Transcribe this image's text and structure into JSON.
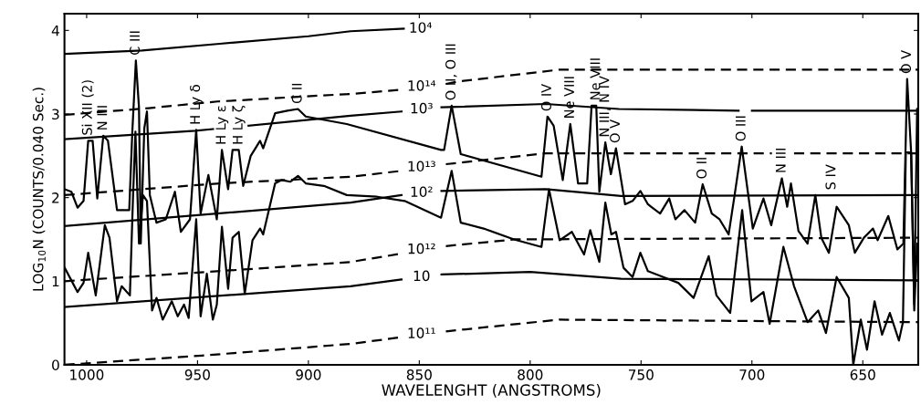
{
  "chart_data": {
    "type": "line",
    "xlabel": "WAVELENGHT (ANGSTROMS)",
    "ylabel": "LOG$_{10}$N (COUNTS/0.040 Sec.)",
    "xlim": [
      1010,
      625
    ],
    "xticks": [
      1000,
      950,
      900,
      850,
      800,
      750,
      700,
      650
    ],
    "ylim": [
      0,
      4.2
    ],
    "yticks": [
      0,
      1,
      2,
      3,
      4
    ],
    "grid": false,
    "marker": "none",
    "series": [
      {
        "color": "#000000",
        "line_style": "solid",
        "x": [
          1009.9,
          1006.9,
          1004.1,
          1001.4,
          999.3,
          997.3,
          995.2,
          992.5,
          990.4,
          986.3,
          980.8,
          979.4,
          977.8,
          976.4,
          975.6,
          974.0,
          972.8,
          971.5,
          968.5,
          964.3,
          960.2,
          957.5,
          953.4,
          950.6,
          948.6,
          945.1,
          941.3,
          939.0,
          936.2,
          934.2,
          931.4,
          929.4,
          926.0,
          921.8,
          920.4,
          915.0,
          909.5,
          904.7,
          901.2,
          882.7,
          840.2,
          838.8,
          835.4,
          831.3,
          794.9,
          792.2,
          789.4,
          785.3,
          781.9,
          778.4,
          774.3,
          772.3,
          770.2,
          768.8,
          766.1,
          763.6,
          761.3,
          757.2,
          753.8,
          750.3,
          746.9,
          745.5,
          741.4,
          737.3,
          734.5,
          730.4,
          725.6,
          722.2,
          718.1,
          714.6,
          710.5,
          707.8,
          704.6,
          699.6,
          694.8,
          691.3,
          686.5,
          684.1,
          682.4,
          679.0,
          674.9,
          671.4,
          668.7,
          665.3,
          661.8,
          656.3,
          653.6,
          649.5,
          645.4,
          643.3,
          638.5,
          634.4,
          631.7,
          630.0,
          628.2,
          626.8,
          625.5
        ],
        "values": [
          2.1,
          2.07,
          1.88,
          1.96,
          2.68,
          2.68,
          1.99,
          2.74,
          2.68,
          1.85,
          1.85,
          2.79,
          3.64,
          3.08,
          1.45,
          2.83,
          3.03,
          2.03,
          1.7,
          1.74,
          2.07,
          1.59,
          1.74,
          2.81,
          1.81,
          2.27,
          1.74,
          2.57,
          2.1,
          2.57,
          2.57,
          2.14,
          2.5,
          2.68,
          2.59,
          3.01,
          3.04,
          3.06,
          2.97,
          2.88,
          2.57,
          2.57,
          3.1,
          2.52,
          2.25,
          2.97,
          2.86,
          2.21,
          2.88,
          2.17,
          2.17,
          3.1,
          3.1,
          2.07,
          2.66,
          2.28,
          2.59,
          1.92,
          1.96,
          2.08,
          1.92,
          1.89,
          1.81,
          1.99,
          1.74,
          1.85,
          1.7,
          2.16,
          1.81,
          1.74,
          1.56,
          2.03,
          2.61,
          1.63,
          1.99,
          1.67,
          2.23,
          1.89,
          2.17,
          1.6,
          1.45,
          2.03,
          1.52,
          1.34,
          1.89,
          1.67,
          1.34,
          1.52,
          1.63,
          1.49,
          1.78,
          1.38,
          1.45,
          3.42,
          2.54,
          0.72,
          3.06
        ]
      },
      {
        "color": "#000000",
        "line_style": "solid",
        "x": [
          1009.9,
          1006.9,
          1004.1,
          1001.4,
          999.3,
          995.9,
          991.8,
          989.7,
          986.3,
          984.2,
          980.5,
          979.1,
          978.0,
          976.4,
          974.6,
          972.8,
          970.5,
          968.5,
          965.7,
          961.6,
          958.9,
          956.1,
          954.0,
          950.6,
          948.6,
          945.8,
          943.1,
          941.3,
          939.0,
          936.2,
          934.2,
          931.4,
          928.7,
          925.2,
          921.8,
          920.4,
          915.0,
          912.2,
          908.1,
          904.7,
          901.2,
          893.0,
          882.7,
          869.0,
          856.6,
          840.2,
          835.4,
          831.3,
          821.0,
          807.3,
          794.9,
          791.5,
          786.7,
          781.2,
          775.7,
          772.9,
          768.8,
          766.1,
          763.4,
          761.3,
          757.9,
          753.8,
          750.3,
          746.9,
          740.0,
          733.2,
          726.3,
          719.5,
          716.0,
          709.8,
          704.4,
          700.2,
          694.8,
          692.0,
          685.8,
          681.0,
          674.9,
          670.1,
          666.6,
          661.8,
          656.3,
          654.3,
          650.9,
          648.1,
          644.7,
          641.3,
          637.8,
          633.7,
          631.9,
          630.6,
          628.2,
          626.8,
          625.5
        ],
        "values": [
          1.16,
          1.01,
          0.87,
          0.98,
          1.34,
          0.83,
          1.67,
          1.52,
          0.76,
          0.94,
          0.83,
          2.0,
          2.79,
          1.45,
          2.03,
          1.96,
          0.65,
          0.8,
          0.54,
          0.76,
          0.58,
          0.72,
          0.56,
          1.74,
          0.58,
          1.09,
          0.54,
          0.72,
          1.65,
          0.91,
          1.52,
          1.59,
          0.85,
          1.49,
          1.63,
          1.56,
          2.17,
          2.21,
          2.19,
          2.26,
          2.17,
          2.14,
          2.03,
          2.01,
          1.96,
          1.76,
          2.32,
          1.7,
          1.63,
          1.5,
          1.41,
          2.1,
          1.49,
          1.59,
          1.32,
          1.61,
          1.23,
          1.94,
          1.56,
          1.59,
          1.16,
          1.05,
          1.34,
          1.12,
          1.05,
          0.98,
          0.8,
          1.3,
          0.83,
          0.62,
          1.85,
          0.76,
          0.87,
          0.49,
          1.41,
          0.94,
          0.51,
          0.65,
          0.38,
          1.05,
          0.8,
          0.0,
          0.54,
          0.18,
          0.76,
          0.36,
          0.62,
          0.29,
          0.51,
          2.54,
          2.54,
          0.65,
          1.45
        ]
      },
      {
        "name": "10⁴",
        "color": "#000000",
        "line_style": "solid",
        "x": [
          1010,
          975,
          940,
          900,
          881,
          857
        ],
        "values": [
          3.72,
          3.76,
          3.84,
          3.93,
          3.99,
          4.02
        ]
      },
      {
        "name": "10¹⁴",
        "color": "#000000",
        "line_style": "dashed",
        "x": [
          1010,
          972,
          941,
          927,
          902,
          881,
          858,
          849,
          838,
          832,
          787,
          625
        ],
        "values": [
          2.99,
          3.07,
          3.15,
          3.17,
          3.21,
          3.24,
          3.29,
          null,
          3.36,
          3.39,
          3.53,
          3.53
        ]
      },
      {
        "name": "10³",
        "color": "#000000",
        "line_style": "solid",
        "x": [
          1010,
          951,
          943,
          935,
          927,
          881,
          858,
          849,
          840,
          793,
          760,
          706,
          703,
          700,
          625
        ],
        "values": [
          2.7,
          2.8,
          2.82,
          null,
          2.86,
          2.98,
          3.03,
          null,
          3.08,
          3.12,
          3.06,
          3.04,
          null,
          3.04,
          3.04
        ]
      },
      {
        "name": "10¹³",
        "color": "#000000",
        "line_style": "dashed",
        "x": [
          1010,
          940,
          881,
          858,
          849,
          838,
          793,
          691,
          686,
          681,
          625
        ],
        "values": [
          2.03,
          2.17,
          2.25,
          2.32,
          null,
          2.4,
          2.53,
          2.53,
          null,
          2.53,
          2.53
        ]
      },
      {
        "name": "10²",
        "color": "#000000",
        "line_style": "solid",
        "x": [
          1010,
          881,
          858,
          849,
          840,
          793,
          759,
          625
        ],
        "values": [
          1.66,
          1.94,
          2.03,
          null,
          2.08,
          2.1,
          2.02,
          2.03
        ]
      },
      {
        "name": "10¹²",
        "color": "#000000",
        "line_style": "dashed",
        "x": [
          1010,
          929,
          881,
          858,
          849,
          838,
          807,
          625
        ],
        "values": [
          1.0,
          1.14,
          1.23,
          1.33,
          null,
          1.42,
          1.5,
          1.52
        ]
      },
      {
        "name": "10",
        "color": "#000000",
        "line_style": "solid",
        "x": [
          1010,
          881,
          858,
          849,
          840,
          800,
          759,
          625
        ],
        "values": [
          0.69,
          0.94,
          1.02,
          null,
          1.08,
          1.11,
          1.03,
          1.01
        ]
      },
      {
        "name": "10¹¹",
        "color": "#000000",
        "line_style": "dashed",
        "x": [
          1010,
          948,
          881,
          858,
          849,
          838,
          787,
          625
        ],
        "values": [
          0.0,
          0.11,
          0.25,
          0.33,
          null,
          0.4,
          0.54,
          0.51
        ]
      }
    ],
    "annotations": [
      {
        "text": "Si XII (2)",
        "x": 999.3,
        "y": 2.68
      },
      {
        "text": "N III",
        "x": 992.5,
        "y": 2.74
      },
      {
        "text": "C III",
        "x": 977.8,
        "y": 3.64
      },
      {
        "text": "H Ly δ",
        "x": 950.6,
        "y": 2.81
      },
      {
        "text": "H Ly ε",
        "x": 939.0,
        "y": 2.57
      },
      {
        "text": "H Ly ζ",
        "x": 931.4,
        "y": 2.57
      },
      {
        "text": "C II",
        "x": 904.7,
        "y": 3.06
      },
      {
        "text": "O II, O III",
        "x": 835.4,
        "y": 3.1
      },
      {
        "text": "O IV",
        "x": 792.2,
        "y": 2.97
      },
      {
        "text": "Ne VIII",
        "x": 781.9,
        "y": 2.88
      },
      {
        "text": "Ne VIII",
        "x": 770.2,
        "y": 3.1
      },
      {
        "text": "N III, N IV",
        "x": 766.1,
        "y": 2.66
      },
      {
        "text": "O V",
        "x": 761.3,
        "y": 2.59
      },
      {
        "text": "O II",
        "x": 722.2,
        "y": 2.16
      },
      {
        "text": "O III",
        "x": 704.6,
        "y": 2.61
      },
      {
        "text": "N III",
        "x": 686.5,
        "y": 2.23
      },
      {
        "text": "S IV",
        "x": 664,
        "y": 2.03
      },
      {
        "text": "O V",
        "x": 630.0,
        "y": 3.42
      }
    ]
  }
}
